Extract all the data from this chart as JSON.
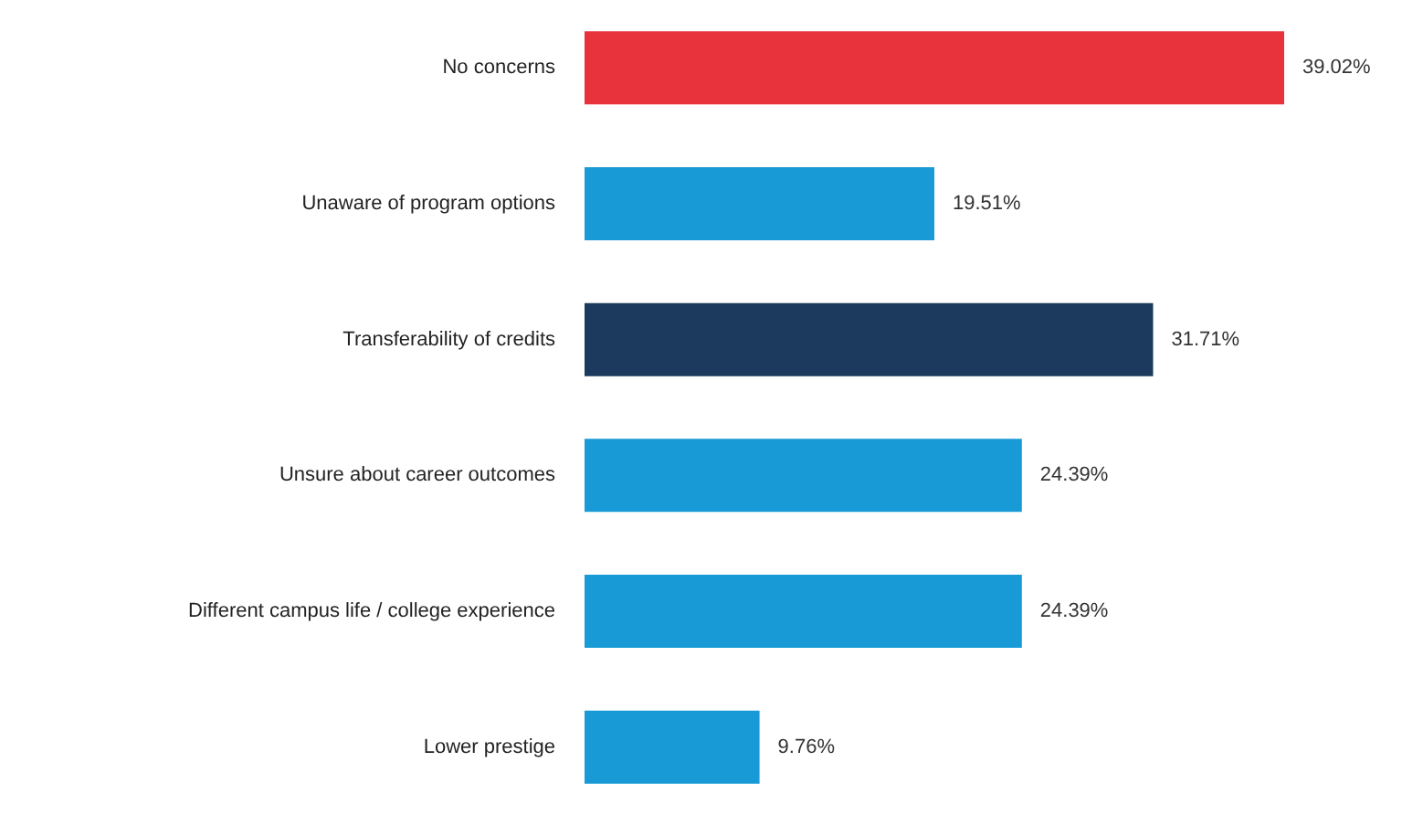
{
  "chart_data": {
    "type": "bar",
    "orientation": "horizontal",
    "categories": [
      "No concerns",
      "Unaware of program options",
      "Transferability of credits",
      "Unsure about career outcomes",
      "Different campus life / college experience",
      "Lower prestige"
    ],
    "values": [
      39.02,
      19.51,
      31.71,
      24.39,
      24.39,
      9.76
    ],
    "colors": [
      "#e8323c",
      "#189ad6",
      "#1c3a5e",
      "#189ad6",
      "#189ad6",
      "#189ad6"
    ],
    "value_labels": [
      "39.02%",
      "19.51%",
      "31.71%",
      "24.39%",
      "24.39%",
      "9.76%"
    ]
  }
}
